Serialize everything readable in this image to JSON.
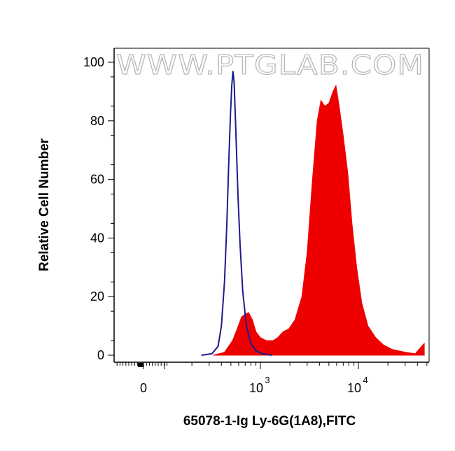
{
  "chart_data": {
    "type": "area",
    "xlabel": "65078-1-Ig Ly-6G(1A8),FITC",
    "ylabel": "Relative Cell Number",
    "watermark": "WWW.PTGLAB.COM",
    "x_scale": "biexponential (log above ~10^2.5)",
    "ylim": [
      0,
      100
    ],
    "y_ticks": [
      "0",
      "20",
      "40",
      "60",
      "80",
      "100"
    ],
    "x_ticks": [
      {
        "value": 0,
        "label": "0",
        "sup": ""
      },
      {
        "value": 1000,
        "label": "10",
        "sup": "3"
      },
      {
        "value": 10000,
        "label": "10",
        "sup": "4"
      }
    ],
    "grid": false,
    "legend": "none",
    "series": [
      {
        "role": "isotype control",
        "style": "outline",
        "color": "#1c1c8c",
        "points": [
          [
            250,
            0
          ],
          [
            320,
            0.5
          ],
          [
            370,
            3
          ],
          [
            400,
            10
          ],
          [
            430,
            25
          ],
          [
            455,
            45
          ],
          [
            475,
            65
          ],
          [
            495,
            82
          ],
          [
            510,
            92
          ],
          [
            525,
            97
          ],
          [
            540,
            93
          ],
          [
            560,
            78
          ],
          [
            590,
            55
          ],
          [
            620,
            38
          ],
          [
            660,
            22
          ],
          [
            720,
            10
          ],
          [
            800,
            4
          ],
          [
            900,
            1.5
          ],
          [
            1050,
            0.5
          ],
          [
            1300,
            0
          ]
        ]
      },
      {
        "role": "stained sample",
        "style": "filled",
        "color": "#ee0000",
        "points": [
          [
            330,
            0
          ],
          [
            430,
            1
          ],
          [
            520,
            5
          ],
          [
            580,
            9
          ],
          [
            640,
            13
          ],
          [
            700,
            14
          ],
          [
            760,
            14.5
          ],
          [
            830,
            12
          ],
          [
            900,
            8
          ],
          [
            1000,
            6
          ],
          [
            1150,
            5
          ],
          [
            1350,
            5
          ],
          [
            1500,
            6
          ],
          [
            1700,
            8
          ],
          [
            1950,
            9
          ],
          [
            2250,
            12
          ],
          [
            2650,
            20
          ],
          [
            3000,
            35
          ],
          [
            3400,
            60
          ],
          [
            3800,
            80
          ],
          [
            4150,
            87
          ],
          [
            4550,
            85
          ],
          [
            5000,
            86
          ],
          [
            5500,
            90
          ],
          [
            5900,
            92
          ],
          [
            6300,
            86
          ],
          [
            7000,
            75
          ],
          [
            7800,
            62
          ],
          [
            8600,
            45
          ],
          [
            9600,
            30
          ],
          [
            10800,
            18
          ],
          [
            12500,
            10
          ],
          [
            15000,
            6
          ],
          [
            18000,
            3.5
          ],
          [
            22000,
            2
          ],
          [
            30000,
            1
          ],
          [
            38000,
            0.5
          ],
          [
            44000,
            3
          ],
          [
            47000,
            4
          ]
        ]
      }
    ]
  }
}
